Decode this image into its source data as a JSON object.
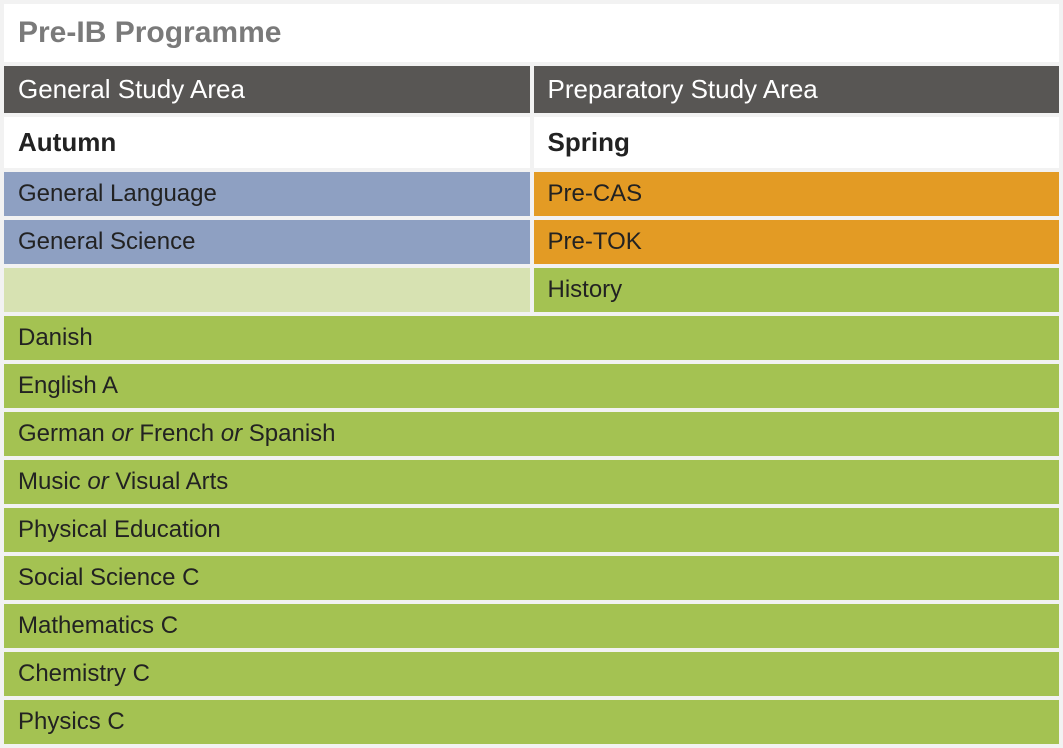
{
  "colors": {
    "page_bg": "#f2f2f2",
    "white": "#ffffff",
    "title_text": "#7a7a7a",
    "header_bg": "#585654",
    "header_text": "#ffffff",
    "blue": "#8ea0c2",
    "orange": "#e39b24",
    "light_green": "#d7e2b2",
    "green": "#a4c252",
    "cell_text": "#222222"
  },
  "title": "Pre-IB Programme",
  "headers": {
    "left": "General Study Area",
    "right": "Preparatory Study Area"
  },
  "subheaders": {
    "left": "Autumn",
    "right": "Spring"
  },
  "split_rows": [
    {
      "left": {
        "text": "General Language",
        "bg": "blue"
      },
      "right": {
        "text": "Pre-CAS",
        "bg": "orange"
      }
    },
    {
      "left": {
        "text": "General Science",
        "bg": "blue"
      },
      "right": {
        "text": "Pre-TOK",
        "bg": "orange"
      }
    },
    {
      "left": {
        "text": "",
        "bg": "light_green"
      },
      "right": {
        "text": "History",
        "bg": "green"
      }
    }
  ],
  "full_rows": [
    {
      "segments": [
        "Danish"
      ]
    },
    {
      "segments": [
        "English A"
      ]
    },
    {
      "segments": [
        "German ",
        {
          "or": true
        },
        " French ",
        {
          "or": true
        },
        " Spanish"
      ]
    },
    {
      "segments": [
        "Music ",
        {
          "or": true
        },
        " Visual Arts"
      ]
    },
    {
      "segments": [
        "Physical Education"
      ]
    },
    {
      "segments": [
        "Social Science C"
      ]
    },
    {
      "segments": [
        "Mathematics C"
      ]
    },
    {
      "segments": [
        "Chemistry C"
      ]
    },
    {
      "segments": [
        "Physics C"
      ]
    }
  ]
}
